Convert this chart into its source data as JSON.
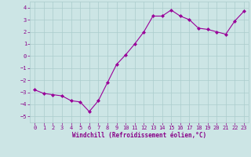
{
  "x": [
    0,
    1,
    2,
    3,
    4,
    5,
    6,
    7,
    8,
    9,
    10,
    11,
    12,
    13,
    14,
    15,
    16,
    17,
    18,
    19,
    20,
    21,
    22,
    23
  ],
  "y": [
    -2.8,
    -3.1,
    -3.2,
    -3.3,
    -3.7,
    -3.8,
    -4.6,
    -3.7,
    -2.2,
    -0.7,
    0.1,
    1.0,
    2.0,
    3.3,
    3.3,
    3.8,
    3.3,
    3.0,
    2.3,
    2.2,
    2.0,
    1.8,
    2.9,
    3.7
  ],
  "line_color": "#990099",
  "marker": "D",
  "marker_size": 2.0,
  "bg_color": "#cce5e5",
  "grid_color": "#aacccc",
  "xlabel": "Windchill (Refroidissement éolien,°C)",
  "xlabel_color": "#880088",
  "tick_color": "#880088",
  "ylim": [
    -5.5,
    4.5
  ],
  "yticks": [
    -5,
    -4,
    -3,
    -2,
    -1,
    0,
    1,
    2,
    3,
    4
  ],
  "xlim": [
    -0.5,
    23.5
  ],
  "xticks": [
    0,
    1,
    2,
    3,
    4,
    5,
    6,
    7,
    8,
    9,
    10,
    11,
    12,
    13,
    14,
    15,
    16,
    17,
    18,
    19,
    20,
    21,
    22,
    23
  ],
  "tick_fontsize": 5,
  "xlabel_fontsize": 5.5,
  "linewidth": 0.8
}
